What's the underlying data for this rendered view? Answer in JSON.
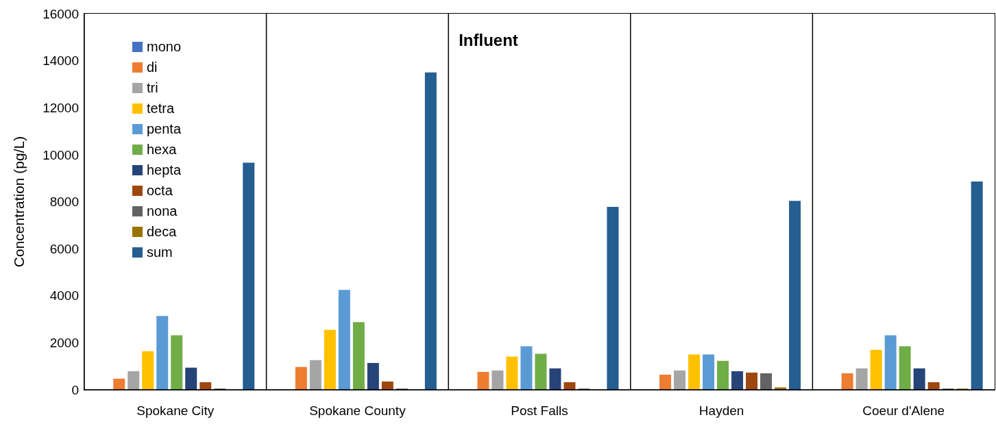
{
  "chart_data": {
    "type": "bar",
    "title": "Influent",
    "ylabel": "Concentration (pg/L)",
    "categories": [
      "Spokane City",
      "Spokane County",
      "Post Falls",
      "Hayden",
      "Coeur d'Alene"
    ],
    "series": [
      {
        "name": "mono",
        "color": "#4472c4",
        "values": [
          0,
          0,
          0,
          0,
          0
        ]
      },
      {
        "name": "di",
        "color": "#ed7d31",
        "values": [
          470,
          970,
          760,
          640,
          700
        ]
      },
      {
        "name": "tri",
        "color": "#a5a5a5",
        "values": [
          790,
          1260,
          820,
          820,
          910
        ]
      },
      {
        "name": "tetra",
        "color": "#ffc000",
        "values": [
          1640,
          2550,
          1410,
          1500,
          1700
        ]
      },
      {
        "name": "penta",
        "color": "#5b9bd5",
        "values": [
          3140,
          4250,
          1850,
          1500,
          2320
        ]
      },
      {
        "name": "hexa",
        "color": "#70ad47",
        "values": [
          2320,
          2880,
          1530,
          1230,
          1850
        ]
      },
      {
        "name": "hepta",
        "color": "#264478",
        "values": [
          940,
          1140,
          910,
          790,
          910
        ]
      },
      {
        "name": "octa",
        "color": "#9e480e",
        "values": [
          320,
          350,
          320,
          730,
          320
        ]
      },
      {
        "name": "nona",
        "color": "#636363",
        "values": [
          50,
          50,
          50,
          700,
          50
        ]
      },
      {
        "name": "deca",
        "color": "#997300",
        "values": [
          0,
          0,
          0,
          100,
          50
        ]
      },
      {
        "name": "sum",
        "color": "#255e91",
        "values": [
          9660,
          13500,
          7780,
          8040,
          8860
        ]
      }
    ],
    "ylim": [
      0,
      16000
    ],
    "yticks": [
      0,
      2000,
      4000,
      6000,
      8000,
      10000,
      12000,
      14000,
      16000
    ],
    "grid": "x",
    "legend": "top left"
  }
}
